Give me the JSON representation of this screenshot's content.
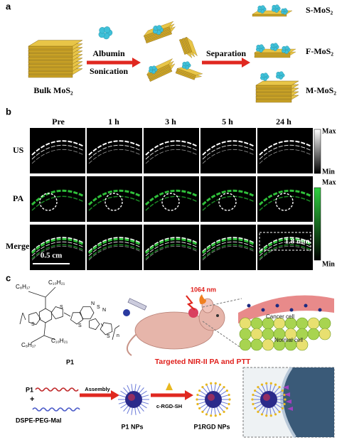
{
  "panel_a": {
    "label": "a",
    "start": "Bulk MoS₂",
    "step1": [
      "Albumin",
      "Sonication"
    ],
    "step2": "Separation",
    "products": [
      "S-MoS₂",
      "F-MoS₂",
      "M-MoS₂"
    ]
  },
  "panel_b": {
    "label": "b",
    "columns": [
      "Pre",
      "1 h",
      "3 h",
      "5 h",
      "24 h"
    ],
    "rows": [
      "US",
      "PA",
      "Merge"
    ],
    "colorbars": [
      {
        "max": "Max",
        "min": "Min"
      },
      {
        "max": "Max",
        "min": "Min"
      }
    ],
    "scale_bar": "0.5 cm",
    "thickness": "1.8 mm"
  },
  "panel_c": {
    "label": "c",
    "substituents": [
      "C₈H₁₇",
      "C₁₀H₂₁",
      "C₈H₁₇",
      "C₁₀H₂₁"
    ],
    "atoms": [
      "S",
      "S",
      "N",
      "S",
      "N",
      "S",
      "S"
    ],
    "repeat": "n",
    "polymer": "P1",
    "laser": "1064 nm",
    "cells": [
      "Cancer cell",
      "Normal cell"
    ],
    "caption": "Targeted NIR-II PA and PTT",
    "assembly": {
      "polymer": "P1",
      "plus": "+",
      "lipid": "DSPE-PEG-Mal",
      "step1": "Assembly",
      "np1": "P1 NPs",
      "ligand": "c-RGD-SH",
      "np2": "P1RGD NPs"
    }
  }
}
